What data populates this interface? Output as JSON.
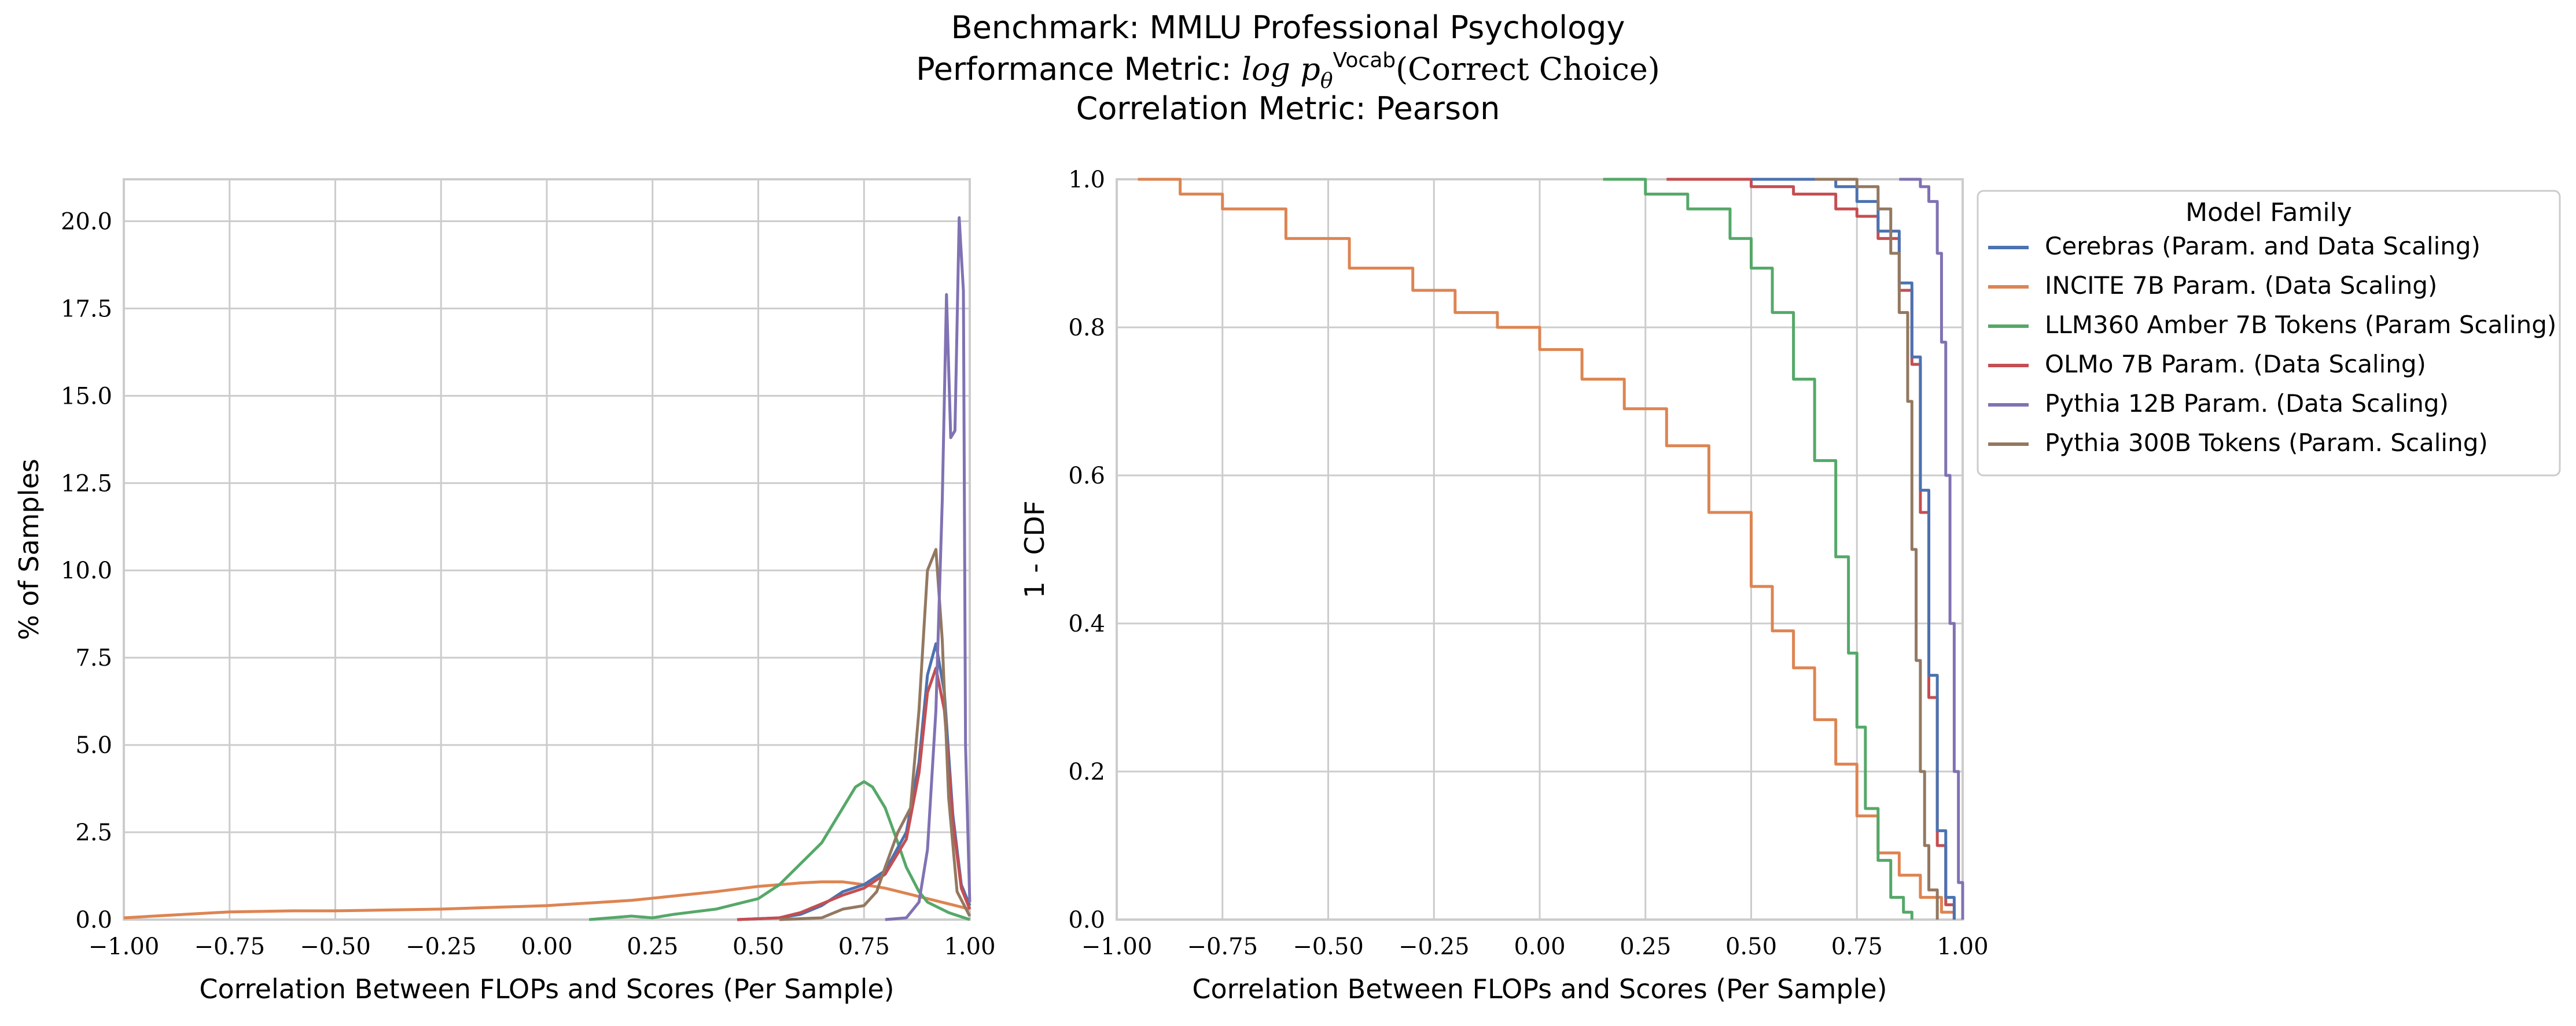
{
  "figure": {
    "title_lines": [
      "Benchmark: MMLU Professional Psychology",
      "Performance Metric: log p_θ^Vocab(Correct Choice)",
      "Correlation Metric: Pearson"
    ]
  },
  "colors": {
    "Cerebras (Param. and Data Scaling)": "#4c72b0",
    "INCITE 7B Param. (Data Scaling)": "#dd8452",
    "LLM360 Amber 7B Tokens (Param Scaling)": "#55a868",
    "OLMo 7B Param. (Data Scaling)": "#c44e52",
    "Pythia 12B Param. (Data Scaling)": "#8172b3",
    "Pythia 300B Tokens (Param. Scaling)": "#937860"
  },
  "chart_data": [
    {
      "type": "line",
      "subtype": "kde",
      "xlabel": "Correlation Between FLOPs and Scores (Per Sample)",
      "ylabel": "% of Samples",
      "xlim": [
        -1.0,
        1.0
      ],
      "ylim": [
        0,
        21.2
      ],
      "xticks": [
        "−1.00",
        "−0.75",
        "−0.50",
        "−0.25",
        "0.00",
        "0.25",
        "0.50",
        "0.75",
        "1.00"
      ],
      "xtick_values": [
        -1.0,
        -0.75,
        -0.5,
        -0.25,
        0.0,
        0.25,
        0.5,
        0.75,
        1.0
      ],
      "yticks": [
        "0.0",
        "2.5",
        "5.0",
        "7.5",
        "10.0",
        "12.5",
        "15.0",
        "17.5",
        "20.0"
      ],
      "ytick_values": [
        0,
        2.5,
        5,
        7.5,
        10,
        12.5,
        15,
        17.5,
        20
      ],
      "grid": true,
      "series": [
        {
          "name": "INCITE 7B Param. (Data Scaling)",
          "x": [
            -1.0,
            -0.9,
            -0.75,
            -0.6,
            -0.5,
            -0.25,
            0.0,
            0.2,
            0.4,
            0.5,
            0.6,
            0.65,
            0.7,
            0.75,
            0.8,
            0.85,
            0.9,
            0.95,
            1.0
          ],
          "y": [
            0.05,
            0.12,
            0.22,
            0.25,
            0.25,
            0.3,
            0.4,
            0.55,
            0.8,
            0.95,
            1.05,
            1.08,
            1.08,
            1.0,
            0.9,
            0.75,
            0.6,
            0.45,
            0.3
          ]
        },
        {
          "name": "LLM360 Amber 7B Tokens (Param Scaling)",
          "x": [
            0.1,
            0.15,
            0.2,
            0.25,
            0.3,
            0.4,
            0.5,
            0.55,
            0.6,
            0.65,
            0.7,
            0.73,
            0.75,
            0.77,
            0.8,
            0.83,
            0.85,
            0.88,
            0.9,
            0.95,
            1.0
          ],
          "y": [
            0.0,
            0.05,
            0.1,
            0.05,
            0.15,
            0.3,
            0.6,
            1.0,
            1.6,
            2.2,
            3.2,
            3.8,
            3.95,
            3.8,
            3.2,
            2.2,
            1.5,
            0.8,
            0.5,
            0.2,
            0.0
          ]
        },
        {
          "name": "Cerebras (Param. and Data Scaling)",
          "x": [
            0.45,
            0.55,
            0.6,
            0.65,
            0.7,
            0.75,
            0.8,
            0.85,
            0.88,
            0.9,
            0.92,
            0.94,
            0.96,
            0.98,
            1.0
          ],
          "y": [
            0.0,
            0.05,
            0.15,
            0.4,
            0.8,
            1.0,
            1.4,
            2.5,
            4.5,
            7.0,
            7.9,
            6.5,
            3.0,
            1.0,
            0.4
          ]
        },
        {
          "name": "OLMo 7B Param. (Data Scaling)",
          "x": [
            0.45,
            0.55,
            0.6,
            0.65,
            0.7,
            0.75,
            0.8,
            0.85,
            0.88,
            0.9,
            0.92,
            0.94,
            0.96,
            0.98,
            1.0
          ],
          "y": [
            0.0,
            0.05,
            0.2,
            0.45,
            0.7,
            0.9,
            1.3,
            2.3,
            4.2,
            6.5,
            7.2,
            6.0,
            2.8,
            0.9,
            0.3
          ]
        },
        {
          "name": "Pythia 300B Tokens (Param. Scaling)",
          "x": [
            0.55,
            0.65,
            0.7,
            0.75,
            0.78,
            0.8,
            0.83,
            0.86,
            0.88,
            0.9,
            0.92,
            0.935,
            0.95,
            0.97,
            1.0
          ],
          "y": [
            0.0,
            0.05,
            0.3,
            0.4,
            0.8,
            1.5,
            2.5,
            3.2,
            6.0,
            10.0,
            10.6,
            8.0,
            3.5,
            0.8,
            0.1
          ]
        },
        {
          "name": "Pythia 12B Param. (Data Scaling)",
          "x": [
            0.8,
            0.85,
            0.88,
            0.9,
            0.92,
            0.935,
            0.945,
            0.955,
            0.965,
            0.975,
            0.985,
            0.99,
            1.0
          ],
          "y": [
            0.0,
            0.05,
            0.5,
            2.0,
            6.0,
            12.0,
            17.9,
            13.8,
            14.0,
            20.1,
            18.0,
            5.0,
            0.5
          ]
        }
      ]
    },
    {
      "type": "line",
      "subtype": "step (1 - CDF)",
      "xlabel": "Correlation Between FLOPs and Scores (Per Sample)",
      "ylabel": "1 - CDF",
      "xlim": [
        -1.0,
        1.0
      ],
      "ylim": [
        0.0,
        1.0
      ],
      "xticks": [
        "−1.00",
        "−0.75",
        "−0.50",
        "−0.25",
        "0.00",
        "0.25",
        "0.50",
        "0.75",
        "1.00"
      ],
      "xtick_values": [
        -1.0,
        -0.75,
        -0.5,
        -0.25,
        0.0,
        0.25,
        0.5,
        0.75,
        1.0
      ],
      "yticks": [
        "0.0",
        "0.2",
        "0.4",
        "0.6",
        "0.8",
        "1.0"
      ],
      "ytick_values": [
        0,
        0.2,
        0.4,
        0.6,
        0.8,
        1.0
      ],
      "grid": true,
      "legend": {
        "title": "Model Family",
        "position": "outside-right",
        "entries": [
          "Cerebras (Param. and Data Scaling)",
          "INCITE 7B Param. (Data Scaling)",
          "LLM360 Amber 7B Tokens (Param Scaling)",
          "OLMo 7B Param. (Data Scaling)",
          "Pythia 12B Param. (Data Scaling)",
          "Pythia 300B Tokens (Param. Scaling)"
        ]
      },
      "series": [
        {
          "name": "INCITE 7B Param. (Data Scaling)",
          "x": [
            -0.95,
            -0.85,
            -0.75,
            -0.6,
            -0.45,
            -0.3,
            -0.2,
            -0.1,
            0.0,
            0.1,
            0.2,
            0.3,
            0.4,
            0.5,
            0.55,
            0.6,
            0.65,
            0.7,
            0.75,
            0.8,
            0.85,
            0.9,
            0.95,
            0.98
          ],
          "y": [
            1.0,
            0.98,
            0.96,
            0.92,
            0.88,
            0.85,
            0.82,
            0.8,
            0.77,
            0.73,
            0.69,
            0.64,
            0.55,
            0.45,
            0.39,
            0.34,
            0.27,
            0.21,
            0.14,
            0.09,
            0.06,
            0.03,
            0.01,
            0.0
          ]
        },
        {
          "name": "LLM360 Amber 7B Tokens (Param Scaling)",
          "x": [
            0.15,
            0.25,
            0.35,
            0.45,
            0.5,
            0.55,
            0.6,
            0.65,
            0.7,
            0.73,
            0.75,
            0.77,
            0.8,
            0.83,
            0.86,
            0.88
          ],
          "y": [
            1.0,
            0.98,
            0.96,
            0.92,
            0.88,
            0.82,
            0.73,
            0.62,
            0.49,
            0.36,
            0.26,
            0.15,
            0.08,
            0.03,
            0.01,
            0.0
          ]
        },
        {
          "name": "OLMo 7B Param. (Data Scaling)",
          "x": [
            0.3,
            0.5,
            0.6,
            0.7,
            0.75,
            0.8,
            0.85,
            0.88,
            0.9,
            0.92,
            0.94,
            0.96,
            0.98
          ],
          "y": [
            1.0,
            0.99,
            0.98,
            0.96,
            0.95,
            0.92,
            0.85,
            0.75,
            0.55,
            0.3,
            0.1,
            0.02,
            0.0
          ]
        },
        {
          "name": "Cerebras (Param. and Data Scaling)",
          "x": [
            0.5,
            0.7,
            0.75,
            0.8,
            0.85,
            0.88,
            0.9,
            0.92,
            0.94,
            0.96,
            0.98
          ],
          "y": [
            1.0,
            0.99,
            0.97,
            0.93,
            0.86,
            0.76,
            0.58,
            0.33,
            0.12,
            0.03,
            0.0
          ]
        },
        {
          "name": "Pythia 300B Tokens (Param. Scaling)",
          "x": [
            0.65,
            0.75,
            0.8,
            0.83,
            0.85,
            0.87,
            0.88,
            0.89,
            0.9,
            0.91,
            0.92,
            0.94
          ],
          "y": [
            1.0,
            0.99,
            0.96,
            0.9,
            0.82,
            0.7,
            0.5,
            0.35,
            0.2,
            0.1,
            0.04,
            0.0
          ]
        },
        {
          "name": "Pythia 12B Param. (Data Scaling)",
          "x": [
            0.85,
            0.9,
            0.92,
            0.94,
            0.95,
            0.96,
            0.97,
            0.98,
            0.99,
            1.0
          ],
          "y": [
            1.0,
            0.99,
            0.97,
            0.9,
            0.78,
            0.6,
            0.4,
            0.2,
            0.05,
            0.0
          ]
        }
      ]
    }
  ]
}
